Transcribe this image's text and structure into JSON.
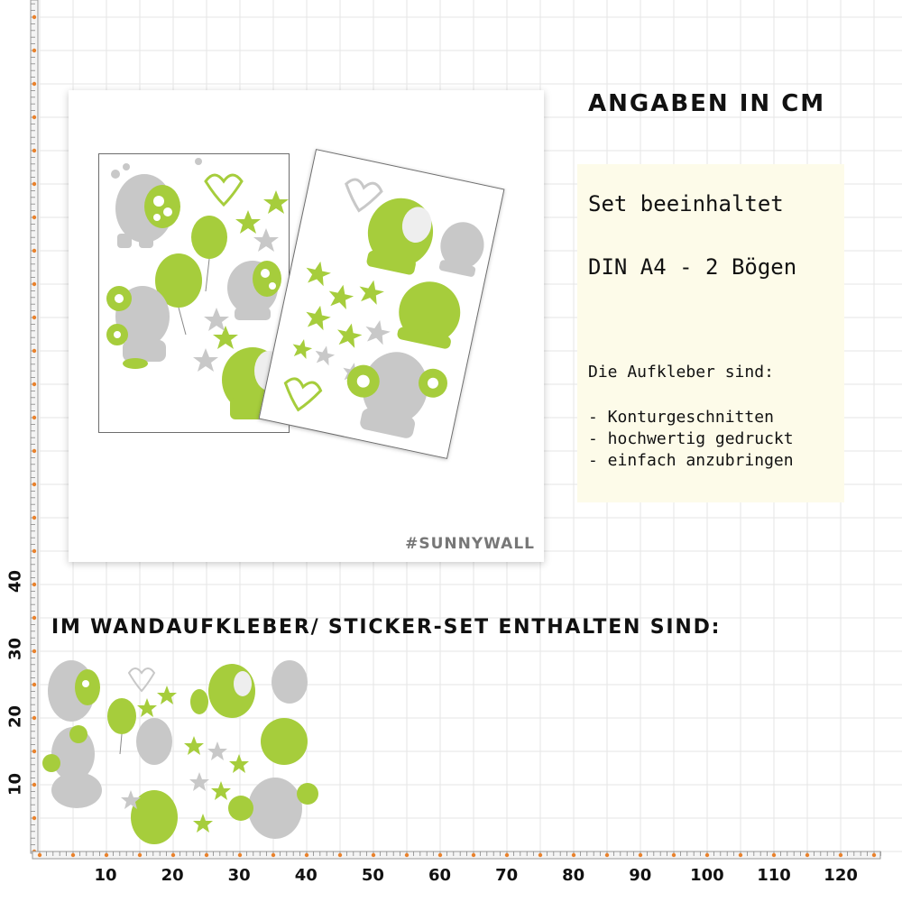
{
  "header": {
    "units_title": "ANGABEN IN CM"
  },
  "info": {
    "set_title": "Set beeinhaltet",
    "set_format": "DIN A4 - 2 Bögen",
    "features_title": "Die Aufkleber sind:",
    "features": [
      "- Konturgeschnitten",
      "- hochwertig gedruckt",
      "- einfach anzubringen"
    ]
  },
  "preview": {
    "brand": "#SUNNYWALL"
  },
  "set_section": {
    "title": "IM WANDAUFKLEBER/ STICKER-SET ENTHALTEN SIND:"
  },
  "ruler": {
    "x_ticks": [
      "10",
      "20",
      "30",
      "40",
      "50",
      "60",
      "70",
      "80",
      "90",
      "100",
      "110",
      "120"
    ],
    "y_ticks": [
      "10",
      "20",
      "30",
      "40"
    ]
  },
  "colors": {
    "green": "#a6cd3c",
    "grey": "#c8c8c8",
    "grid": "#e6e6e6",
    "ruler_dot": "#e9822d",
    "info_bg": "#fdfbe9"
  }
}
